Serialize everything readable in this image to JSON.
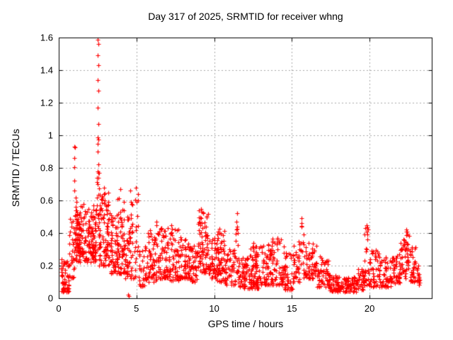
{
  "chart_data": {
    "type": "scatter",
    "title": "Day 317 of 2025, SRMTID for receiver whng",
    "xlabel": "GPS time / hours",
    "ylabel": "SRMTID / TECUs",
    "xlim": [
      0,
      24
    ],
    "ylim": [
      0,
      1.6
    ],
    "xtick_values": [
      0,
      5,
      10,
      15,
      20
    ],
    "xtick_labels": [
      "0",
      "5",
      "10",
      "15",
      "20"
    ],
    "ytick_values": [
      0,
      0.2,
      0.4,
      0.6,
      0.8,
      1.0,
      1.2,
      1.4,
      1.6
    ],
    "ytick_labels": [
      "0",
      "0.2",
      "0.4",
      "0.6",
      "0.8",
      "1",
      "1.2",
      "1.4",
      "1.6"
    ],
    "grid": true,
    "legend": false,
    "marker": "plus",
    "colors": {
      "marker": "#ff0000",
      "grid": "#a8a8a8",
      "axis": "#000000",
      "text": "#000000",
      "background": "#ffffff"
    },
    "explicit_points": [
      [
        1.0,
        0.93
      ],
      [
        1.03,
        0.925
      ],
      [
        1.0,
        0.86
      ],
      [
        1.01,
        0.805
      ],
      [
        1.02,
        0.72
      ],
      [
        0.99,
        0.66
      ],
      [
        2.52,
        1.585
      ],
      [
        2.55,
        1.56
      ],
      [
        2.52,
        1.49
      ],
      [
        2.53,
        1.43
      ],
      [
        2.52,
        1.34
      ],
      [
        2.54,
        1.275
      ],
      [
        2.52,
        1.17
      ],
      [
        2.53,
        1.07
      ],
      [
        2.5,
        0.985
      ],
      [
        2.55,
        0.975
      ],
      [
        2.52,
        0.95
      ],
      [
        2.5,
        0.9
      ],
      [
        2.53,
        0.82
      ],
      [
        2.51,
        0.78
      ],
      [
        2.56,
        0.74
      ],
      [
        2.5,
        0.7
      ],
      [
        2.9,
        0.68
      ],
      [
        3.95,
        0.67
      ],
      [
        4.6,
        0.66
      ],
      [
        4.95,
        0.68
      ],
      [
        4.45,
        0.02
      ],
      [
        4.5,
        0.015
      ],
      [
        6.3,
        0.47
      ],
      [
        9.15,
        0.55
      ],
      [
        9.2,
        0.53
      ],
      [
        9.28,
        0.52
      ],
      [
        11.45,
        0.47
      ],
      [
        11.46,
        0.52
      ],
      [
        11.48,
        0.44
      ],
      [
        15.62,
        0.49
      ],
      [
        15.6,
        0.46
      ],
      [
        19.8,
        0.45
      ],
      [
        19.84,
        0.435
      ],
      [
        22.35,
        0.42
      ],
      [
        22.4,
        0.41
      ]
    ],
    "cloud_bin_format": [
      "x_start",
      "x_end",
      "y_min",
      "y_max",
      "count",
      "low_bias_power"
    ],
    "cloud_bins": [
      [
        0.15,
        0.65,
        0.04,
        0.24,
        60,
        1.6
      ],
      [
        0.65,
        1.0,
        0.12,
        0.5,
        30,
        1.4
      ],
      [
        1.0,
        1.15,
        0.3,
        0.62,
        15,
        1.2
      ],
      [
        1.05,
        2.4,
        0.22,
        0.58,
        130,
        1.5
      ],
      [
        1.15,
        1.45,
        0.28,
        0.52,
        40,
        1.2
      ],
      [
        1.9,
        2.4,
        0.28,
        0.55,
        35,
        1.3
      ],
      [
        2.42,
        2.62,
        0.3,
        0.78,
        18,
        1.2
      ],
      [
        2.6,
        3.3,
        0.2,
        0.66,
        90,
        1.5
      ],
      [
        3.3,
        3.8,
        0.15,
        0.52,
        60,
        1.5
      ],
      [
        3.8,
        4.2,
        0.15,
        0.64,
        50,
        1.6
      ],
      [
        4.2,
        4.9,
        0.12,
        0.5,
        55,
        1.6
      ],
      [
        4.55,
        4.75,
        0.3,
        0.64,
        10,
        1.1
      ],
      [
        4.88,
        5.12,
        0.22,
        0.66,
        14,
        1.2
      ],
      [
        5.15,
        5.6,
        0.07,
        0.33,
        30,
        1.5
      ],
      [
        5.6,
        6.3,
        0.1,
        0.42,
        60,
        1.5
      ],
      [
        6.2,
        6.38,
        0.2,
        0.46,
        10,
        1.2
      ],
      [
        6.38,
        7.1,
        0.12,
        0.43,
        70,
        1.5
      ],
      [
        7.1,
        7.7,
        0.1,
        0.45,
        55,
        1.6
      ],
      [
        7.7,
        8.4,
        0.12,
        0.4,
        60,
        1.5
      ],
      [
        8.4,
        8.9,
        0.1,
        0.32,
        45,
        1.4
      ],
      [
        8.9,
        9.3,
        0.15,
        0.56,
        45,
        1.3
      ],
      [
        9.3,
        9.7,
        0.15,
        0.53,
        40,
        1.4
      ],
      [
        9.7,
        10.1,
        0.12,
        0.38,
        35,
        1.4
      ],
      [
        10.1,
        10.7,
        0.1,
        0.42,
        50,
        1.5
      ],
      [
        10.15,
        10.45,
        0.15,
        0.46,
        20,
        1.2
      ],
      [
        10.7,
        11.35,
        0.08,
        0.3,
        50,
        1.4
      ],
      [
        11.38,
        11.55,
        0.15,
        0.45,
        12,
        1.2
      ],
      [
        11.55,
        12.2,
        0.06,
        0.25,
        55,
        1.4
      ],
      [
        12.2,
        12.9,
        0.06,
        0.28,
        55,
        1.4
      ],
      [
        12.35,
        12.75,
        0.08,
        0.34,
        30,
        1.3
      ],
      [
        12.9,
        13.7,
        0.08,
        0.35,
        65,
        1.5
      ],
      [
        13.7,
        14.5,
        0.08,
        0.38,
        60,
        1.5
      ],
      [
        14.5,
        15.1,
        0.05,
        0.28,
        45,
        1.4
      ],
      [
        15.1,
        15.5,
        0.1,
        0.35,
        30,
        1.4
      ],
      [
        15.55,
        15.75,
        0.2,
        0.46,
        10,
        1.2
      ],
      [
        15.75,
        16.6,
        0.12,
        0.36,
        65,
        1.4
      ],
      [
        16.6,
        17.4,
        0.07,
        0.26,
        55,
        1.5
      ],
      [
        17.4,
        18.2,
        0.04,
        0.15,
        60,
        1.3
      ],
      [
        18.2,
        19.2,
        0.04,
        0.13,
        70,
        1.3
      ],
      [
        19.2,
        19.6,
        0.05,
        0.18,
        30,
        1.3
      ],
      [
        19.6,
        19.95,
        0.08,
        0.44,
        25,
        1.7
      ],
      [
        19.95,
        20.7,
        0.07,
        0.3,
        55,
        1.6
      ],
      [
        20.7,
        21.4,
        0.07,
        0.27,
        50,
        1.5
      ],
      [
        21.4,
        22.0,
        0.09,
        0.28,
        45,
        1.4
      ],
      [
        22.0,
        22.3,
        0.12,
        0.36,
        25,
        1.3
      ],
      [
        22.3,
        22.55,
        0.14,
        0.42,
        25,
        1.2
      ],
      [
        22.55,
        23.05,
        0.1,
        0.33,
        35,
        1.4
      ],
      [
        23.05,
        23.25,
        0.08,
        0.2,
        15,
        1.3
      ]
    ],
    "seed": 20250317
  }
}
